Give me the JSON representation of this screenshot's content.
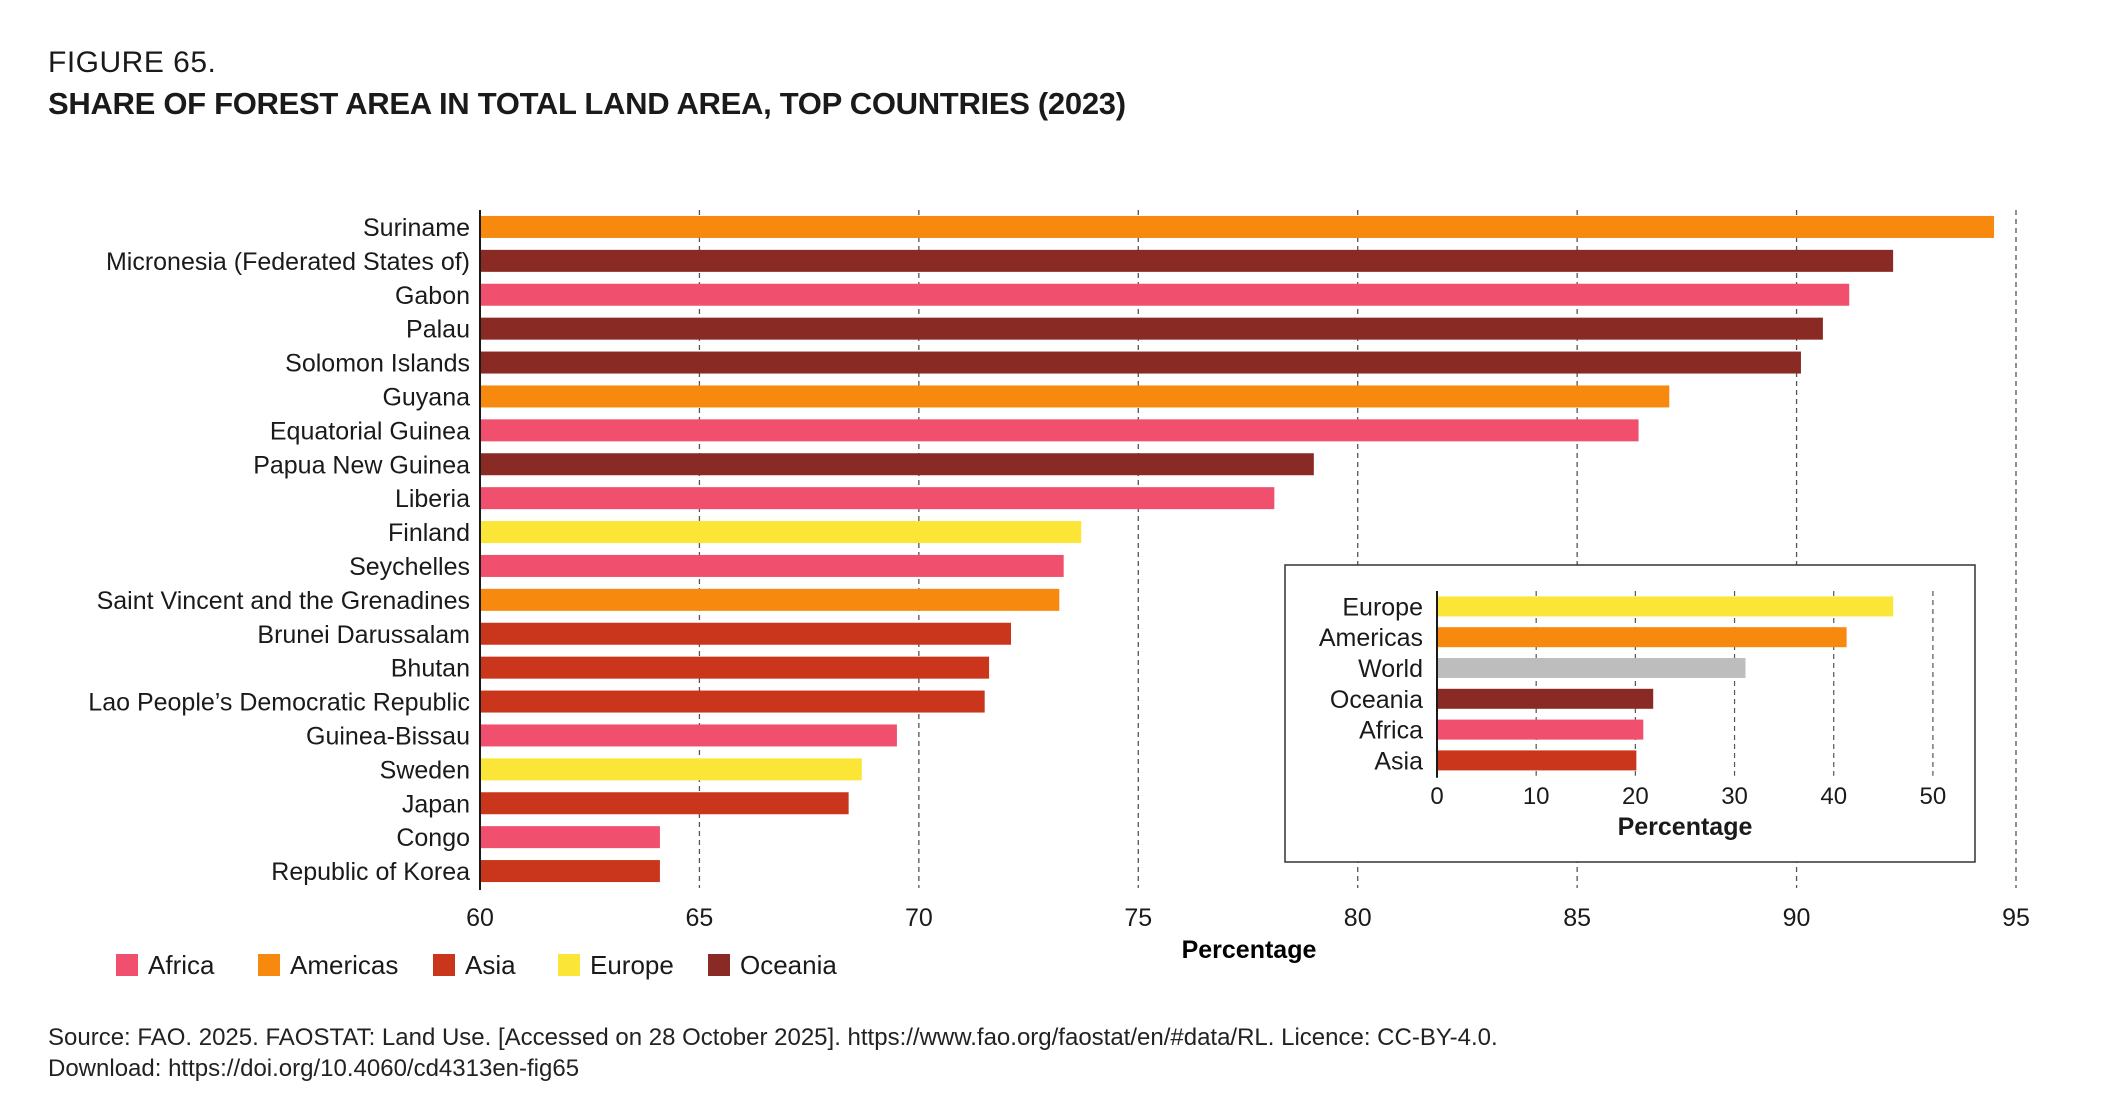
{
  "figure": {
    "label": "FIGURE 65.",
    "title": "SHARE OF FOREST AREA IN TOTAL LAND AREA, TOP COUNTRIES (2023)"
  },
  "colors": {
    "Africa": "#f0506e",
    "Americas": "#f7890f",
    "Asia": "#c9361c",
    "Europe": "#fbe638",
    "Oceania": "#8a2a25",
    "World": "#bdbdbd"
  },
  "chart_data": [
    {
      "type": "bar",
      "orientation": "horizontal",
      "title": "SHARE OF FOREST AREA IN TOTAL LAND AREA, TOP COUNTRIES (2023)",
      "xlabel": "Percentage",
      "xlim": [
        60,
        95
      ],
      "xticks": [
        60,
        65,
        70,
        75,
        80,
        85,
        90,
        95
      ],
      "grid": true,
      "categories": [
        "Suriname",
        "Micronesia (Federated States of)",
        "Gabon",
        "Palau",
        "Solomon Islands",
        "Guyana",
        "Equatorial Guinea",
        "Papua New Guinea",
        "Liberia",
        "Finland",
        "Seychelles",
        "Saint Vincent and the Grenadines",
        "Brunei Darussalam",
        "Bhutan",
        "Lao People’s Democratic Republic",
        "Guinea-Bissau",
        "Sweden",
        "Japan",
        "Congo",
        "Republic of Korea"
      ],
      "values": [
        94.5,
        92.2,
        91.2,
        90.6,
        90.1,
        87.1,
        86.4,
        79.0,
        78.1,
        73.7,
        73.3,
        73.2,
        72.1,
        71.6,
        71.5,
        69.5,
        68.7,
        68.4,
        64.1,
        64.1
      ],
      "regions": [
        "Americas",
        "Oceania",
        "Africa",
        "Oceania",
        "Oceania",
        "Americas",
        "Africa",
        "Oceania",
        "Africa",
        "Europe",
        "Africa",
        "Americas",
        "Asia",
        "Asia",
        "Asia",
        "Africa",
        "Europe",
        "Asia",
        "Africa",
        "Asia"
      ],
      "legend": {
        "position": "bottom-left",
        "entries": [
          "Africa",
          "Americas",
          "Asia",
          "Europe",
          "Oceania"
        ]
      }
    },
    {
      "type": "bar",
      "orientation": "horizontal",
      "inset": true,
      "xlabel": "Percentage",
      "xlim": [
        0,
        55
      ],
      "xticks": [
        0,
        10,
        20,
        30,
        40,
        50
      ],
      "grid": true,
      "categories": [
        "Europe",
        "Americas",
        "World",
        "Oceania",
        "Africa",
        "Asia"
      ],
      "values": [
        46.0,
        41.3,
        31.1,
        21.8,
        20.8,
        20.1
      ],
      "regions": [
        "Europe",
        "Americas",
        "World",
        "Oceania",
        "Africa",
        "Asia"
      ]
    }
  ],
  "source": {
    "line1": "Source: FAO. 2025. FAOSTAT: Land Use. [Accessed on 28 October 2025]. https://www.fao.org/faostat/en/#data/RL. Licence: CC-BY-4.0.",
    "line2": "Download: https://doi.org/10.4060/cd4313en-fig65"
  }
}
